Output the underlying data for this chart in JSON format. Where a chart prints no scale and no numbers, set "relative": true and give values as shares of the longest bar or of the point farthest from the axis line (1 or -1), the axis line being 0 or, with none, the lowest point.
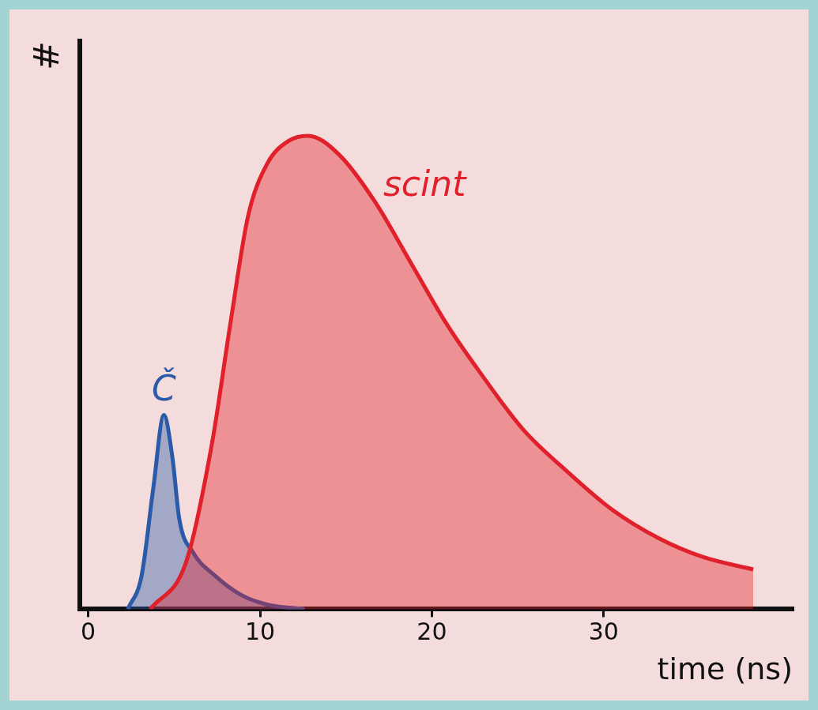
{
  "chart_data": {
    "type": "area",
    "xlabel": "time (ns)",
    "ylabel": "#",
    "relative": true,
    "legend": false,
    "grid": false,
    "xlim": [
      -0.5,
      41
    ],
    "xticks": [
      0,
      10,
      20,
      30
    ],
    "series": [
      {
        "name": "scint",
        "color": "#e0202a",
        "x": [
          3.6,
          5.7,
          7.2,
          8.3,
          9.3,
          10.4,
          11.7,
          12.8,
          14.6,
          16.7,
          18.8,
          20.9,
          23,
          25.3,
          27.9,
          30.5,
          33.2,
          35.8,
          38.7
        ],
        "values": [
          0,
          0.1,
          0.35,
          0.61,
          0.83,
          0.94,
          0.99,
          1,
          0.96,
          0.86,
          0.73,
          0.6,
          0.49,
          0.38,
          0.29,
          0.21,
          0.15,
          0.11,
          0.084
        ]
      },
      {
        "name": "Č",
        "color": "#2a5aa8",
        "x": [
          2.3,
          3.1,
          3.8,
          4.4,
          4.9,
          5.3,
          6.1,
          7.4,
          8.9,
          10.4,
          12.6
        ],
        "values": [
          0,
          0.07,
          0.26,
          0.41,
          0.32,
          0.19,
          0.12,
          0.07,
          0.03,
          0.01,
          0
        ]
      }
    ]
  }
}
